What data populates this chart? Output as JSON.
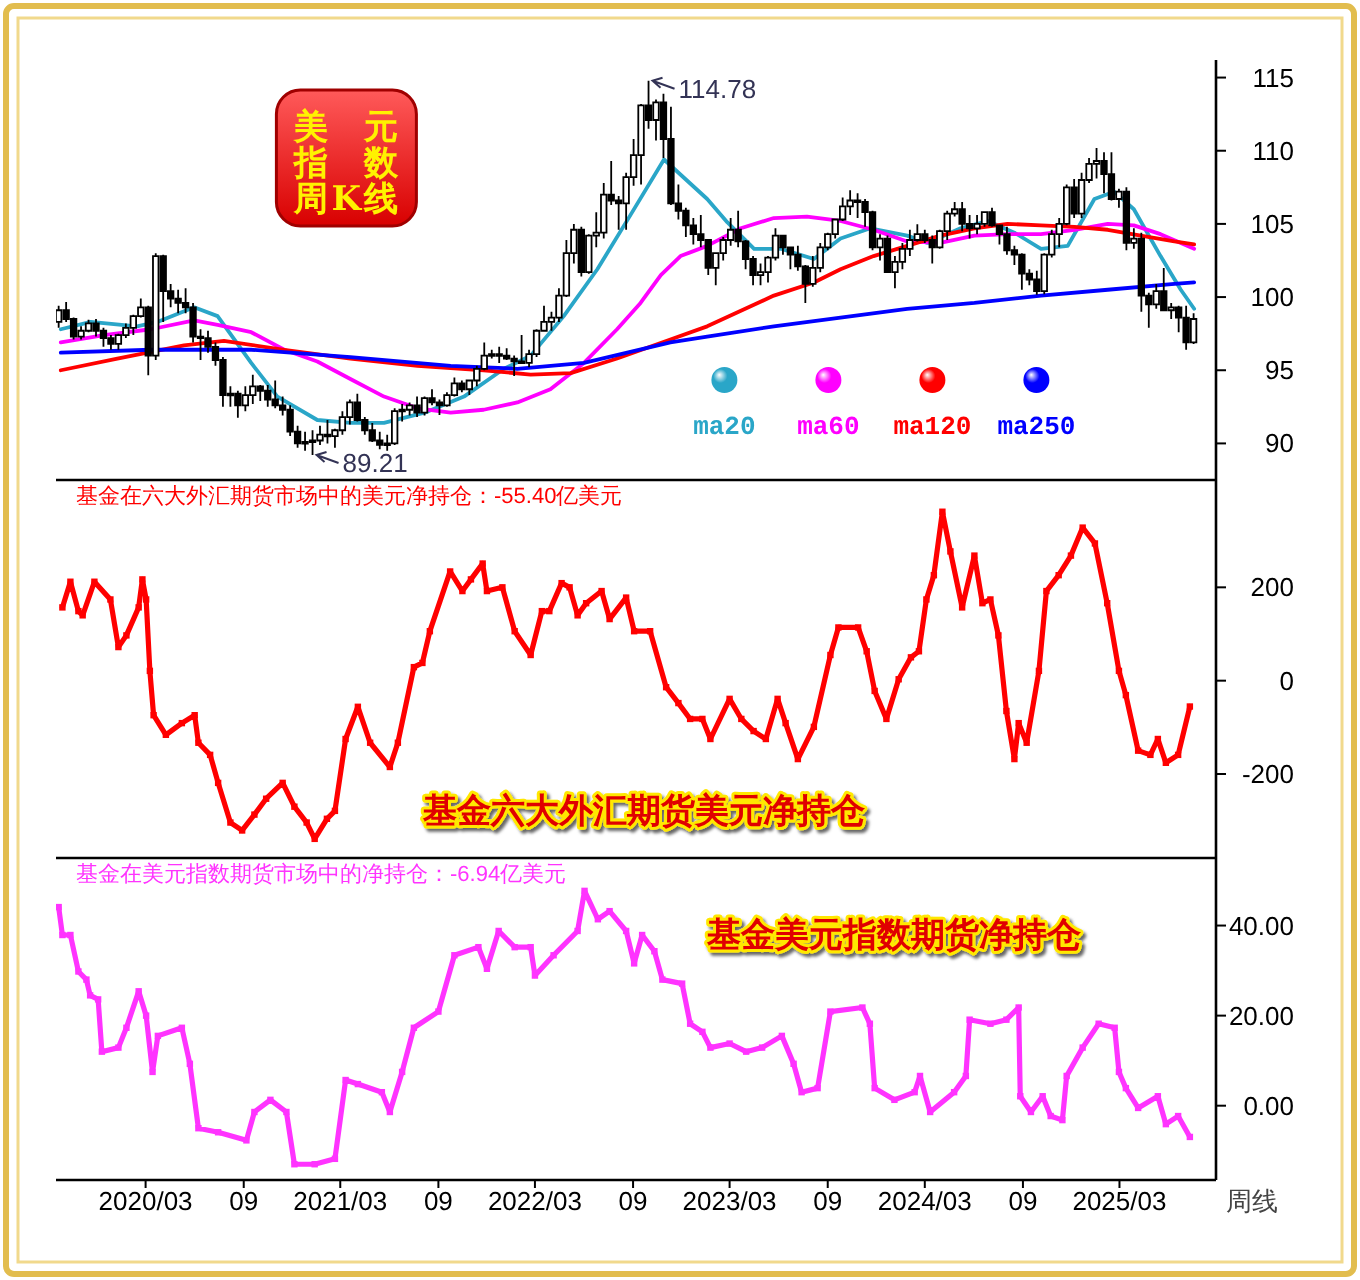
{
  "chart_data": [
    {
      "type": "candlestick",
      "title": "美元指数周K线",
      "color": "#000000",
      "x": [
        "2019-09-20",
        "2019-10-04",
        "2019-10-18",
        "2019-11-01",
        "2019-11-15",
        "2019-11-29",
        "2019-12-13",
        "2019-12-27",
        "2020-01-10",
        "2020-01-24",
        "2020-02-07",
        "2020-02-21",
        "2020-03-06",
        "2020-03-20",
        "2020-04-03",
        "2020-04-17",
        "2020-05-01",
        "2020-05-15",
        "2020-05-29",
        "2020-06-12",
        "2020-06-26",
        "2020-07-10",
        "2020-07-24",
        "2020-08-07",
        "2020-08-21",
        "2020-09-04",
        "2020-09-18",
        "2020-10-02",
        "2020-10-16",
        "2020-10-30",
        "2020-11-13",
        "2020-11-27",
        "2020-12-11",
        "2020-12-25",
        "2021-01-08",
        "2021-01-22",
        "2021-02-05",
        "2021-02-19",
        "2021-03-05",
        "2021-03-19",
        "2021-04-02",
        "2021-04-16",
        "2021-04-30",
        "2021-05-14",
        "2021-05-28",
        "2021-06-11",
        "2021-06-25",
        "2021-07-09",
        "2021-07-23",
        "2021-08-06",
        "2021-08-20",
        "2021-09-03",
        "2021-09-17",
        "2021-10-01",
        "2021-10-15",
        "2021-10-29",
        "2021-11-12",
        "2021-11-26",
        "2021-12-10",
        "2021-12-24",
        "2022-01-07",
        "2022-01-21",
        "2022-02-04",
        "2022-02-18",
        "2022-03-04",
        "2022-03-18",
        "2022-04-01",
        "2022-04-15",
        "2022-04-29",
        "2022-05-13",
        "2022-05-27",
        "2022-06-10",
        "2022-06-24",
        "2022-07-08",
        "2022-07-22",
        "2022-08-05",
        "2022-08-19",
        "2022-09-02",
        "2022-09-16",
        "2022-09-30",
        "2022-10-14",
        "2022-10-28",
        "2022-11-11",
        "2022-11-25",
        "2022-12-09",
        "2022-12-23",
        "2023-01-06",
        "2023-01-20",
        "2023-02-03",
        "2023-02-17",
        "2023-03-03",
        "2023-03-17",
        "2023-03-31",
        "2023-04-14",
        "2023-04-28",
        "2023-05-12",
        "2023-05-26",
        "2023-06-09",
        "2023-06-23",
        "2023-07-07",
        "2023-07-21",
        "2023-08-04",
        "2023-08-18",
        "2023-09-01",
        "2023-09-15",
        "2023-09-29",
        "2023-10-13",
        "2023-10-27",
        "2023-11-10",
        "2023-11-24",
        "2023-12-08",
        "2023-12-22",
        "2024-01-05",
        "2024-01-19",
        "2024-02-02",
        "2024-02-16",
        "2024-03-01",
        "2024-03-15",
        "2024-03-29",
        "2024-04-12",
        "2024-04-26",
        "2024-05-10",
        "2024-05-24",
        "2024-06-07",
        "2024-06-21",
        "2024-07-05",
        "2024-07-19",
        "2024-08-02",
        "2024-08-16",
        "2024-08-30",
        "2024-09-13",
        "2024-09-27",
        "2024-10-11",
        "2024-10-25",
        "2024-11-08",
        "2024-11-22",
        "2024-12-06",
        "2024-12-20",
        "2025-01-03",
        "2025-01-17",
        "2025-01-31",
        "2025-02-14",
        "2025-02-28",
        "2025-03-14",
        "2025-03-28",
        "2025-04-11",
        "2025-04-25",
        "2025-05-09",
        "2025-05-23",
        "2025-06-06",
        "2025-06-20",
        "2025-07-04",
        "2025-07-18"
      ],
      "ohlc": [
        [
          98.3,
          99.4,
          97.9,
          99.1
        ],
        [
          99.1,
          99.67,
          98.3,
          98.5
        ],
        [
          98.5,
          98.6,
          97.1,
          97.3
        ],
        [
          97.3,
          98.0,
          97.1,
          97.7
        ],
        [
          97.7,
          98.45,
          97.6,
          98.2
        ],
        [
          98.2,
          98.5,
          97.3,
          97.7
        ],
        [
          97.7,
          97.9,
          96.6,
          97.2
        ],
        [
          97.2,
          97.4,
          96.4,
          96.8
        ],
        [
          96.8,
          97.5,
          96.4,
          97.4
        ],
        [
          97.4,
          98.2,
          97.2,
          97.9
        ],
        [
          97.9,
          98.8,
          97.4,
          98.7
        ],
        [
          98.7,
          99.9,
          98.6,
          99.3
        ],
        [
          99.3,
          99.4,
          94.65,
          96.0
        ],
        [
          96.0,
          103.0,
          95.7,
          102.8
        ],
        [
          102.8,
          102.9,
          98.3,
          100.4
        ],
        [
          100.4,
          100.9,
          99.3,
          99.9
        ],
        [
          99.9,
          100.5,
          98.9,
          99.6
        ],
        [
          99.6,
          100.6,
          98.9,
          99.3
        ],
        [
          99.3,
          99.6,
          96.9,
          97.3
        ],
        [
          97.3,
          97.8,
          95.7,
          97.2
        ],
        [
          97.2,
          97.7,
          96.2,
          96.6
        ],
        [
          96.6,
          96.9,
          95.3,
          95.7
        ],
        [
          95.7,
          95.9,
          92.5,
          93.3
        ],
        [
          93.3,
          93.9,
          92.5,
          93.4
        ],
        [
          93.4,
          93.6,
          91.75,
          92.6
        ],
        [
          92.6,
          93.9,
          92.2,
          93.3
        ],
        [
          93.3,
          94.7,
          92.7,
          93.9
        ],
        [
          93.9,
          94.0,
          92.9,
          93.6
        ],
        [
          93.6,
          94.0,
          92.5,
          93.0
        ],
        [
          93.0,
          94.3,
          92.4,
          92.6
        ],
        [
          92.6,
          93.2,
          91.9,
          92.3
        ],
        [
          92.3,
          92.6,
          90.5,
          90.8
        ],
        [
          90.8,
          91.2,
          89.7,
          90.0
        ],
        [
          90.0,
          90.8,
          89.5,
          90.1
        ],
        [
          90.1,
          90.9,
          89.21,
          90.2
        ],
        [
          90.2,
          91.2,
          89.9,
          90.6
        ],
        [
          90.6,
          91.6,
          90.0,
          90.5
        ],
        [
          90.5,
          91.0,
          89.7,
          90.9
        ],
        [
          90.9,
          92.2,
          90.6,
          91.8
        ],
        [
          91.8,
          93.0,
          91.3,
          92.8
        ],
        [
          92.8,
          93.4,
          91.5,
          91.6
        ],
        [
          91.6,
          91.8,
          90.6,
          90.9
        ],
        [
          90.9,
          91.4,
          90.1,
          90.2
        ],
        [
          90.2,
          90.8,
          89.6,
          89.9
        ],
        [
          89.9,
          90.6,
          89.5,
          90.0
        ],
        [
          90.0,
          92.4,
          89.9,
          92.2
        ],
        [
          92.2,
          92.7,
          91.5,
          92.3
        ],
        [
          92.3,
          92.8,
          91.9,
          92.6
        ],
        [
          92.6,
          93.2,
          91.8,
          92.1
        ],
        [
          92.1,
          93.2,
          91.9,
          93.1
        ],
        [
          93.1,
          93.7,
          92.6,
          92.8
        ],
        [
          92.8,
          93.0,
          91.95,
          92.6
        ],
        [
          92.6,
          93.5,
          92.5,
          93.3
        ],
        [
          93.3,
          94.5,
          93.2,
          94.1
        ],
        [
          94.1,
          94.3,
          93.5,
          93.7
        ],
        [
          93.7,
          94.3,
          93.3,
          94.3
        ],
        [
          94.3,
          95.3,
          93.9,
          95.1
        ],
        [
          95.1,
          96.9,
          95.0,
          96.0
        ],
        [
          96.0,
          96.4,
          95.8,
          96.1
        ],
        [
          96.1,
          96.6,
          95.5,
          96.0
        ],
        [
          96.0,
          96.5,
          95.7,
          95.8
        ],
        [
          95.8,
          96.0,
          94.6,
          95.6
        ],
        [
          95.6,
          97.4,
          95.5,
          95.5
        ],
        [
          95.5,
          96.4,
          95.2,
          96.1
        ],
        [
          96.1,
          97.8,
          95.9,
          97.7
        ],
        [
          97.7,
          99.4,
          97.7,
          98.3
        ],
        [
          98.3,
          99.0,
          97.7,
          98.6
        ],
        [
          98.6,
          100.6,
          98.3,
          100.1
        ],
        [
          100.1,
          103.9,
          100.0,
          103.0
        ],
        [
          103.0,
          105.0,
          102.3,
          104.6
        ],
        [
          104.6,
          104.8,
          101.4,
          101.7
        ],
        [
          101.7,
          104.3,
          101.6,
          104.2
        ],
        [
          104.2,
          105.8,
          103.4,
          104.4
        ],
        [
          104.4,
          107.8,
          104.0,
          107.0
        ],
        [
          107.0,
          109.3,
          106.3,
          106.6
        ],
        [
          106.6,
          106.9,
          104.6,
          106.4
        ],
        [
          106.4,
          108.5,
          104.6,
          108.2
        ],
        [
          108.2,
          110.8,
          107.6,
          109.7
        ],
        [
          109.7,
          113.2,
          107.7,
          113.1
        ],
        [
          113.1,
          114.78,
          111.5,
          112.1
        ],
        [
          112.1,
          113.5,
          110.7,
          113.3
        ],
        [
          113.3,
          113.9,
          109.5,
          110.8
        ],
        [
          110.8,
          113.0,
          106.3,
          106.4
        ],
        [
          106.4,
          107.7,
          105.3,
          105.9
        ],
        [
          105.9,
          106.1,
          104.1,
          104.9
        ],
        [
          104.9,
          105.4,
          103.6,
          104.3
        ],
        [
          104.3,
          105.6,
          103.4,
          103.9
        ],
        [
          103.9,
          103.9,
          101.5,
          102.0
        ],
        [
          102.0,
          103.0,
          100.8,
          103.0
        ],
        [
          103.0,
          104.1,
          102.5,
          103.9
        ],
        [
          103.9,
          105.4,
          103.5,
          104.6
        ],
        [
          104.6,
          105.9,
          103.4,
          103.8
        ],
        [
          103.8,
          103.9,
          101.9,
          102.6
        ],
        [
          102.6,
          102.8,
          100.8,
          101.5
        ],
        [
          101.5,
          102.3,
          100.8,
          101.7
        ],
        [
          101.7,
          102.8,
          101.0,
          102.7
        ],
        [
          102.7,
          104.7,
          102.5,
          104.2
        ],
        [
          104.2,
          104.2,
          102.9,
          103.4
        ],
        [
          103.4,
          103.4,
          101.9,
          102.9
        ],
        [
          102.9,
          103.5,
          101.8,
          102.1
        ],
        [
          102.1,
          102.2,
          99.6,
          100.9
        ],
        [
          100.9,
          102.8,
          100.7,
          102.0
        ],
        [
          102.0,
          103.7,
          101.7,
          103.4
        ],
        [
          103.4,
          104.4,
          103.2,
          104.3
        ],
        [
          104.3,
          105.3,
          104.0,
          105.3
        ],
        [
          105.3,
          106.8,
          105.2,
          106.2
        ],
        [
          106.2,
          107.3,
          105.6,
          106.6
        ],
        [
          106.6,
          107.1,
          105.4,
          106.5
        ],
        [
          106.5,
          106.7,
          104.8,
          105.8
        ],
        [
          105.8,
          105.9,
          103.2,
          103.4
        ],
        [
          103.4,
          104.3,
          102.5,
          104.0
        ],
        [
          104.0,
          104.2,
          101.7,
          101.7
        ],
        [
          101.7,
          102.8,
          100.6,
          102.4
        ],
        [
          102.4,
          103.7,
          101.9,
          103.3
        ],
        [
          103.3,
          104.6,
          102.8,
          103.9
        ],
        [
          103.9,
          104.97,
          103.8,
          104.3
        ],
        [
          104.3,
          104.6,
          103.7,
          103.9
        ],
        [
          103.9,
          104.2,
          102.3,
          103.4
        ],
        [
          103.4,
          104.6,
          103.3,
          104.5
        ],
        [
          104.5,
          105.9,
          103.9,
          105.7
        ],
        [
          105.7,
          106.5,
          105.5,
          106.0
        ],
        [
          106.0,
          106.5,
          104.5,
          105.0
        ],
        [
          105.0,
          105.6,
          104.0,
          104.7
        ],
        [
          104.7,
          105.6,
          104.3,
          105.0
        ],
        [
          105.0,
          105.8,
          104.8,
          105.8
        ],
        [
          105.8,
          106.1,
          104.8,
          104.9
        ],
        [
          104.9,
          104.9,
          103.6,
          104.3
        ],
        [
          104.3,
          104.8,
          102.9,
          103.2
        ],
        [
          103.2,
          103.5,
          102.2,
          102.9
        ],
        [
          102.9,
          103.0,
          100.5,
          101.6
        ],
        [
          101.6,
          101.9,
          100.8,
          101.2
        ],
        [
          101.2,
          101.8,
          100.16,
          100.4
        ],
        [
          100.4,
          103.0,
          100.2,
          102.9
        ],
        [
          102.9,
          104.6,
          102.7,
          104.3
        ],
        [
          104.3,
          105.4,
          103.4,
          105.0
        ],
        [
          105.0,
          107.7,
          104.9,
          107.5
        ],
        [
          107.5,
          108.07,
          105.4,
          105.7
        ],
        [
          105.7,
          108.5,
          105.4,
          108.0
        ],
        [
          108.0,
          109.5,
          107.8,
          109.1
        ],
        [
          109.1,
          110.18,
          108.1,
          109.3
        ],
        [
          109.3,
          109.9,
          107.1,
          108.4
        ],
        [
          108.4,
          109.9,
          106.6,
          106.7
        ],
        [
          106.7,
          107.4,
          106.1,
          107.2
        ],
        [
          107.2,
          107.5,
          103.2,
          103.7
        ],
        [
          103.7,
          104.7,
          103.3,
          104.0
        ],
        [
          104.0,
          104.4,
          99.0,
          100.1
        ],
        [
          100.1,
          100.3,
          97.9,
          99.5
        ],
        [
          99.5,
          100.9,
          99.2,
          100.4
        ],
        [
          100.4,
          101.98,
          99.1,
          99.1
        ],
        [
          99.1,
          99.6,
          98.5,
          99.3
        ],
        [
          99.3,
          99.4,
          97.6,
          98.6
        ],
        [
          98.6,
          99.4,
          96.4,
          96.9
        ],
        [
          96.9,
          98.9,
          96.8,
          98.5
        ]
      ],
      "series": [
        {
          "name": "ma20",
          "type": "line",
          "color": "#2aa6c8",
          "x": [
            "2019-09-24",
            "2019-11-19",
            "2020-02-14",
            "2020-03-23",
            "2020-05-31",
            "2020-07-14",
            "2020-09-15",
            "2020-11-03",
            "2021-01-17",
            "2021-03-20",
            "2021-05-22",
            "2021-08-06",
            "2021-10-19",
            "2022-01-02",
            "2022-02-21",
            "2022-04-24",
            "2022-06-26",
            "2022-08-27",
            "2022-10-29",
            "2023-01-18",
            "2023-02-25",
            "2023-04-16",
            "2023-06-05",
            "2023-08-06",
            "2023-09-25",
            "2023-11-20",
            "2024-01-28",
            "2024-03-06",
            "2024-05-07",
            "2024-06-27",
            "2024-08-16",
            "2024-10-05",
            "2024-11-24",
            "2025-01-13",
            "2025-02-19",
            "2025-03-28",
            "2025-05-17",
            "2025-06-24",
            "2025-07-19"
          ],
          "values": [
            97.8,
            98.3,
            98.0,
            98.3,
            99.3,
            98.7,
            95.5,
            93.2,
            91.6,
            91.4,
            91.4,
            92.1,
            93.2,
            95.1,
            96.0,
            98.7,
            101.9,
            105.6,
            109.4,
            106.7,
            105.1,
            103.3,
            103.3,
            102.6,
            104.0,
            104.7,
            104.2,
            103.7,
            104.7,
            105.2,
            104.4,
            103.3,
            103.5,
            106.7,
            107.2,
            106.0,
            102.8,
            100.5,
            99.2
          ]
        },
        {
          "name": "ma60",
          "type": "line",
          "color": "#ff00ff",
          "x": [
            "2019-09-24",
            "2019-12-14",
            "2020-03-11",
            "2020-05-31",
            "2020-07-14",
            "2020-09-15",
            "2020-11-16",
            "2021-01-17",
            "2021-03-20",
            "2021-05-22",
            "2021-07-24",
            "2021-09-24",
            "2021-11-25",
            "2022-01-27",
            "2022-03-30",
            "2022-06-01",
            "2022-08-02",
            "2022-09-15",
            "2022-10-23",
            "2022-11-29",
            "2023-01-18",
            "2023-03-22",
            "2023-05-23",
            "2023-07-24",
            "2023-09-25",
            "2023-11-26",
            "2024-01-28",
            "2024-03-30",
            "2024-06-02",
            "2024-08-03",
            "2024-10-05",
            "2024-12-07",
            "2025-02-07",
            "2025-03-28",
            "2025-05-17",
            "2025-07-19"
          ],
          "values": [
            96.9,
            97.4,
            97.8,
            98.4,
            98.1,
            97.6,
            96.4,
            95.6,
            94.4,
            93.2,
            92.4,
            92.1,
            92.3,
            92.8,
            93.7,
            95.5,
            97.8,
            99.6,
            101.5,
            102.8,
            103.5,
            104.7,
            105.4,
            105.5,
            105.2,
            104.6,
            103.8,
            103.7,
            104.2,
            104.3,
            104.3,
            104.6,
            105.0,
            104.9,
            104.3,
            103.3
          ]
        },
        {
          "name": "ma120",
          "type": "line",
          "color": "#ff0000",
          "x": [
            "2019-09-24",
            "2020-01-08",
            "2020-05-12",
            "2020-07-26",
            "2020-11-16",
            "2021-03-20",
            "2021-07-24",
            "2021-11-25",
            "2022-02-21",
            "2022-05-07",
            "2022-08-02",
            "2022-11-10",
            "2023-01-18",
            "2023-05-23",
            "2023-08-06",
            "2023-09-25",
            "2023-11-26",
            "2024-01-28",
            "2024-03-30",
            "2024-06-02",
            "2024-08-03",
            "2024-10-05",
            "2024-12-07",
            "2025-02-07",
            "2025-04-10",
            "2025-06-12",
            "2025-07-19"
          ],
          "values": [
            95.0,
            95.8,
            96.7,
            97.0,
            96.4,
            95.8,
            95.3,
            95.0,
            94.7,
            94.8,
            95.8,
            97.1,
            98.0,
            100.1,
            101.0,
            101.9,
            102.8,
            103.5,
            104.2,
            104.7,
            105.0,
            104.9,
            104.8,
            104.6,
            104.2,
            103.8,
            103.6
          ]
        },
        {
          "name": "ma250",
          "type": "line",
          "color": "#0000ff",
          "x": [
            "2019-09-24",
            "2020-03-11",
            "2020-09-15",
            "2021-03-20",
            "2021-09-24",
            "2022-01-27",
            "2022-06-01",
            "2022-11-10",
            "2023-01-18",
            "2023-05-23",
            "2023-09-25",
            "2024-01-28",
            "2024-06-02",
            "2024-10-05",
            "2025-02-07",
            "2025-06-12",
            "2025-07-19"
          ],
          "values": [
            96.2,
            96.4,
            96.4,
            95.9,
            95.3,
            95.1,
            95.5,
            96.9,
            97.3,
            98.0,
            98.6,
            99.2,
            99.6,
            100.1,
            100.5,
            100.9,
            101.0
          ]
        }
      ],
      "xlim": [
        "2019-09-15",
        "2025-08-29"
      ],
      "ylim": [
        87.5,
        116.2
      ],
      "yticks": [
        90,
        95,
        100,
        105,
        110,
        115
      ],
      "tick_labels": "y",
      "legend": "bottom right",
      "annotations": [
        {
          "text": "114.78",
          "x": "2022-09-30",
          "y": 114.78
        },
        {
          "text": "89.21",
          "x": "2021-01-08",
          "y": 89.21
        }
      ]
    },
    {
      "type": "line",
      "title": "基金在六大外汇期货市场中的美元净持仓：-55.40亿美元",
      "color": "#ff0000",
      "marker": "square",
      "x": [
        "2019-09-27",
        "2019-10-12",
        "2019-10-27",
        "2019-11-04",
        "2019-11-26",
        "2019-12-26",
        "2020-01-10",
        "2020-01-25",
        "2020-02-17",
        "2020-02-24",
        "2020-03-02",
        "2020-03-09",
        "2020-03-16",
        "2020-04-08",
        "2020-05-08",
        "2020-06-01",
        "2020-06-08",
        "2020-06-30",
        "2020-07-15",
        "2020-08-07",
        "2020-08-29",
        "2020-09-21",
        "2020-10-13",
        "2020-11-13",
        "2020-12-05",
        "2020-12-28",
        "2021-01-12",
        "2021-02-04",
        "2021-02-19",
        "2021-03-11",
        "2021-04-03",
        "2021-04-26",
        "2021-06-02",
        "2021-06-17",
        "2021-07-17",
        "2021-08-02",
        "2021-08-16",
        "2021-09-23",
        "2021-10-16",
        "2021-11-01",
        "2021-11-23",
        "2021-12-01",
        "2021-12-30",
        "2022-01-22",
        "2022-02-21",
        "2022-03-14",
        "2022-03-28",
        "2022-04-20",
        "2022-05-05",
        "2022-05-20",
        "2022-06-05",
        "2022-07-04",
        "2022-07-19",
        "2022-08-19",
        "2022-09-03",
        "2022-10-03",
        "2022-11-02",
        "2022-11-25",
        "2022-12-17",
        "2023-01-09",
        "2023-01-24",
        "2023-03-01",
        "2023-03-23",
        "2023-04-15",
        "2023-05-08",
        "2023-05-30",
        "2023-06-14",
        "2023-07-07",
        "2023-08-06",
        "2023-09-06",
        "2023-09-21",
        "2023-10-28",
        "2023-11-13",
        "2023-11-28",
        "2023-12-20",
        "2024-01-12",
        "2024-02-04",
        "2024-02-19",
        "2024-03-04",
        "2024-03-18",
        "2024-04-03",
        "2024-04-18",
        "2024-05-10",
        "2024-06-02",
        "2024-06-17",
        "2024-07-02",
        "2024-07-17",
        "2024-08-01",
        "2024-08-16",
        "2024-08-24",
        "2024-09-08",
        "2024-10-01",
        "2024-10-15",
        "2024-11-07",
        "2024-11-30",
        "2024-12-22",
        "2025-01-14",
        "2025-02-06",
        "2025-02-28",
        "2025-03-13",
        "2025-04-05",
        "2025-04-28",
        "2025-05-12",
        "2025-05-27",
        "2025-06-19",
        "2025-07-11"
      ],
      "values": [
        157,
        212,
        149,
        140,
        212,
        174,
        72,
        97,
        157,
        217,
        174,
        21,
        -74,
        -116,
        -91,
        -74,
        -133,
        -159,
        -219,
        -304,
        -321,
        -287,
        -253,
        -219,
        -270,
        -304,
        -339,
        -296,
        -279,
        -125,
        -56,
        -133,
        -185,
        -133,
        29,
        38,
        106,
        234,
        192,
        217,
        251,
        192,
        200,
        106,
        55,
        149,
        149,
        209,
        200,
        140,
        166,
        192,
        132,
        178,
        106,
        106,
        -14,
        -48,
        -82,
        -82,
        -125,
        -39,
        -82,
        -108,
        -125,
        -39,
        -91,
        -168,
        -99,
        55,
        114,
        114,
        63,
        -22,
        -82,
        3,
        50,
        63,
        174,
        226,
        362,
        277,
        157,
        268,
        166,
        174,
        97,
        -65,
        -168,
        -91,
        -133,
        21,
        192,
        226,
        268,
        328,
        294,
        166,
        21,
        -31,
        -150,
        -159,
        -125,
        -176,
        -159,
        -55.4
      ],
      "xlim": [
        "2019-09-15",
        "2025-08-29"
      ],
      "ylim": [
        -380,
        430
      ],
      "yticks": [
        -200,
        0,
        200
      ],
      "tick_labels": "y",
      "annotations": [
        "基金六大外汇期货美元净持仓"
      ]
    },
    {
      "type": "line",
      "title": "基金在美元指数期货市场中的净持仓：-6.94亿美元",
      "color": "#ff33ff",
      "marker": "square",
      "xlabel": "周线",
      "x": [
        "2019-09-20",
        "2019-09-27",
        "2019-10-12",
        "2019-10-27",
        "2019-11-11",
        "2019-11-18",
        "2019-12-03",
        "2019-12-10",
        "2020-01-10",
        "2020-01-25",
        "2020-02-17",
        "2020-03-02",
        "2020-03-14",
        "2020-03-24",
        "2020-05-08",
        "2020-05-23",
        "2020-06-08",
        "2020-07-15",
        "2020-09-06",
        "2020-09-21",
        "2020-10-21",
        "2020-11-20",
        "2020-12-05",
        "2021-01-12",
        "2021-02-19",
        "2021-03-11",
        "2021-04-03",
        "2021-05-18",
        "2021-06-02",
        "2021-06-25",
        "2021-07-17",
        "2021-09-01",
        "2021-10-01",
        "2021-11-15",
        "2021-12-01",
        "2021-12-23",
        "2022-01-22",
        "2022-02-21",
        "2022-03-01",
        "2022-04-05",
        "2022-05-20",
        "2022-06-02",
        "2022-06-27",
        "2022-07-19",
        "2022-08-19",
        "2022-09-03",
        "2022-09-18",
        "2022-10-11",
        "2022-10-26",
        "2022-12-02",
        "2022-12-17",
        "2023-01-09",
        "2023-01-24",
        "2023-03-01",
        "2023-04-01",
        "2023-05-01",
        "2023-06-07",
        "2023-06-29",
        "2023-07-14",
        "2023-08-13",
        "2023-09-06",
        "2023-11-05",
        "2023-11-19",
        "2023-11-28",
        "2024-01-04",
        "2024-02-11",
        "2024-02-21",
        "2024-03-11",
        "2024-04-25",
        "2024-05-17",
        "2024-05-24",
        "2024-07-02",
        "2024-08-01",
        "2024-08-24",
        "2024-08-27",
        "2024-09-16",
        "2024-10-08",
        "2024-10-23",
        "2024-11-14",
        "2024-11-22",
        "2024-12-22",
        "2025-01-21",
        "2025-02-20",
        "2025-02-28",
        "2025-03-13",
        "2025-04-05",
        "2025-05-12",
        "2025-05-27",
        "2025-06-19",
        "2025-07-11"
      ],
      "values": [
        44.1,
        37.9,
        37.9,
        29.8,
        28.0,
        24.5,
        23.6,
        12.0,
        12.9,
        17.3,
        25.4,
        20.0,
        7.5,
        15.5,
        17.3,
        9.3,
        -5.0,
        -5.9,
        -7.7,
        -1.4,
        1.3,
        -1.4,
        -13.0,
        -13.0,
        -11.8,
        5.7,
        4.8,
        3.0,
        -1.4,
        7.5,
        17.3,
        20.9,
        33.4,
        35.2,
        30.4,
        38.8,
        35.2,
        35.2,
        28.9,
        33.4,
        38.8,
        47.7,
        41.4,
        43.2,
        38.8,
        31.6,
        37.9,
        34.3,
        28.0,
        27.1,
        18.2,
        16.4,
        12.9,
        13.8,
        12.0,
        12.9,
        15.5,
        9.3,
        3.0,
        3.9,
        20.9,
        21.8,
        18.2,
        3.9,
        1.3,
        3.0,
        6.6,
        -1.4,
        3.0,
        6.6,
        19.1,
        18.2,
        19.1,
        21.8,
        2.1,
        -1.4,
        2.1,
        -2.3,
        -3.2,
        6.6,
        12.9,
        18.2,
        17.3,
        7.5,
        3.9,
        -0.5,
        2.1,
        -4.1,
        -2.3,
        -6.94
      ],
      "xlim": [
        "2019-09-15",
        "2025-08-29"
      ],
      "xticks": [
        {
          "value": "2020-03",
          "label": "2020/03"
        },
        {
          "value": "2020-09",
          "label": "09"
        },
        {
          "value": "2021-03",
          "label": "2021/03"
        },
        {
          "value": "2021-09",
          "label": "09"
        },
        {
          "value": "2022-03",
          "label": "2022/03"
        },
        {
          "value": "2022-09",
          "label": "09"
        },
        {
          "value": "2023-03",
          "label": "2023/03"
        },
        {
          "value": "2023-09",
          "label": "09"
        },
        {
          "value": "2024-03",
          "label": "2024/03"
        },
        {
          "value": "2024-09",
          "label": "09"
        },
        {
          "value": "2025-03",
          "label": "2025/03"
        }
      ],
      "ylim": [
        -16.5,
        55
      ],
      "yticks": [
        {
          "value": 0,
          "label": "0.00"
        },
        {
          "value": 20,
          "label": "20.00"
        },
        {
          "value": 40,
          "label": "40.00"
        }
      ],
      "annotations": [
        "基金美元指数期货净持仓"
      ]
    }
  ]
}
